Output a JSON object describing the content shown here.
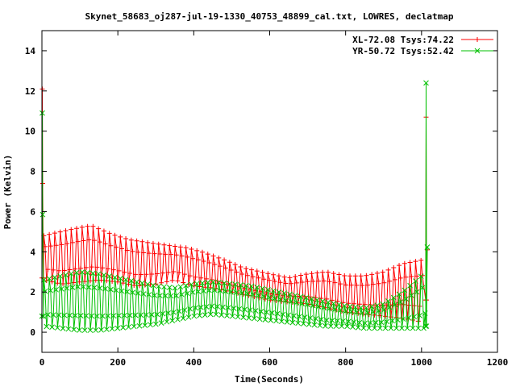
{
  "chart_data": {
    "type": "line",
    "title": "Skynet_58683_oj287-jul-19-1330_40753_48899_cal.txt, LOWRES, declatmap",
    "xlabel": "Time(Seconds)",
    "ylabel": "Power (Kelvin)",
    "xlim": [
      0,
      1200
    ],
    "ylim": [
      -1,
      15
    ],
    "xticks": [
      "0",
      "200",
      "400",
      "600",
      "800",
      "1000",
      "1200"
    ],
    "yticks": [
      "0",
      "2",
      "4",
      "6",
      "8",
      "10",
      "12",
      "14"
    ],
    "grid": false,
    "legend_position": "top-right",
    "series": [
      {
        "name": "XL-72.08 Tsys:74.22",
        "color": "#ff0000",
        "marker": "plus",
        "spikes": [
          {
            "x": 0,
            "low": 2.7,
            "high": 12.1
          },
          {
            "x": 1012,
            "low": 1.6,
            "high": 10.7
          }
        ],
        "upper": [
          [
            5,
            4.8
          ],
          [
            50,
            5.0
          ],
          [
            100,
            5.2
          ],
          [
            130,
            5.3
          ],
          [
            180,
            4.9
          ],
          [
            230,
            4.6
          ],
          [
            300,
            4.4
          ],
          [
            380,
            4.2
          ],
          [
            420,
            4.0
          ],
          [
            480,
            3.6
          ],
          [
            530,
            3.2
          ],
          [
            600,
            2.9
          ],
          [
            650,
            2.7
          ],
          [
            700,
            2.9
          ],
          [
            750,
            3.0
          ],
          [
            800,
            2.8
          ],
          [
            850,
            2.8
          ],
          [
            900,
            3.0
          ],
          [
            950,
            3.4
          ],
          [
            1005,
            3.6
          ]
        ],
        "lower": [
          [
            5,
            2.6
          ],
          [
            50,
            2.4
          ],
          [
            100,
            2.5
          ],
          [
            150,
            2.6
          ],
          [
            200,
            2.5
          ],
          [
            250,
            2.3
          ],
          [
            300,
            2.4
          ],
          [
            350,
            2.6
          ],
          [
            400,
            2.3
          ],
          [
            450,
            2.2
          ],
          [
            500,
            2.0
          ],
          [
            550,
            1.8
          ],
          [
            600,
            1.6
          ],
          [
            650,
            1.5
          ],
          [
            700,
            1.4
          ],
          [
            750,
            1.2
          ],
          [
            800,
            1.0
          ],
          [
            850,
            0.9
          ],
          [
            900,
            0.8
          ],
          [
            950,
            0.7
          ],
          [
            1005,
            0.5
          ]
        ]
      },
      {
        "name": "YR-50.72 Tsys:52.42",
        "color": "#00c000",
        "marker": "cross",
        "spikes": [
          {
            "x": 0,
            "low": 0.8,
            "high": 10.9
          },
          {
            "x": 1012,
            "low": 0.3,
            "high": 12.4
          }
        ],
        "upper": [
          [
            5,
            2.6
          ],
          [
            50,
            2.8
          ],
          [
            100,
            3.0
          ],
          [
            150,
            2.9
          ],
          [
            200,
            2.7
          ],
          [
            250,
            2.5
          ],
          [
            300,
            2.3
          ],
          [
            350,
            2.2
          ],
          [
            400,
            2.4
          ],
          [
            450,
            2.5
          ],
          [
            500,
            2.4
          ],
          [
            550,
            2.3
          ],
          [
            600,
            2.1
          ],
          [
            650,
            1.9
          ],
          [
            700,
            1.7
          ],
          [
            750,
            1.5
          ],
          [
            800,
            1.3
          ],
          [
            850,
            1.2
          ],
          [
            900,
            1.4
          ],
          [
            950,
            2.0
          ],
          [
            1000,
            2.8
          ],
          [
            1010,
            3.2
          ]
        ],
        "lower": [
          [
            5,
            0.3
          ],
          [
            50,
            0.2
          ],
          [
            100,
            0.1
          ],
          [
            150,
            0.1
          ],
          [
            200,
            0.2
          ],
          [
            250,
            0.3
          ],
          [
            300,
            0.4
          ],
          [
            350,
            0.6
          ],
          [
            400,
            0.8
          ],
          [
            450,
            0.9
          ],
          [
            500,
            0.8
          ],
          [
            550,
            0.7
          ],
          [
            600,
            0.6
          ],
          [
            650,
            0.5
          ],
          [
            700,
            0.4
          ],
          [
            750,
            0.3
          ],
          [
            800,
            0.3
          ],
          [
            850,
            0.2
          ],
          [
            900,
            0.2
          ],
          [
            950,
            0.2
          ],
          [
            1005,
            0.2
          ]
        ]
      }
    ]
  }
}
